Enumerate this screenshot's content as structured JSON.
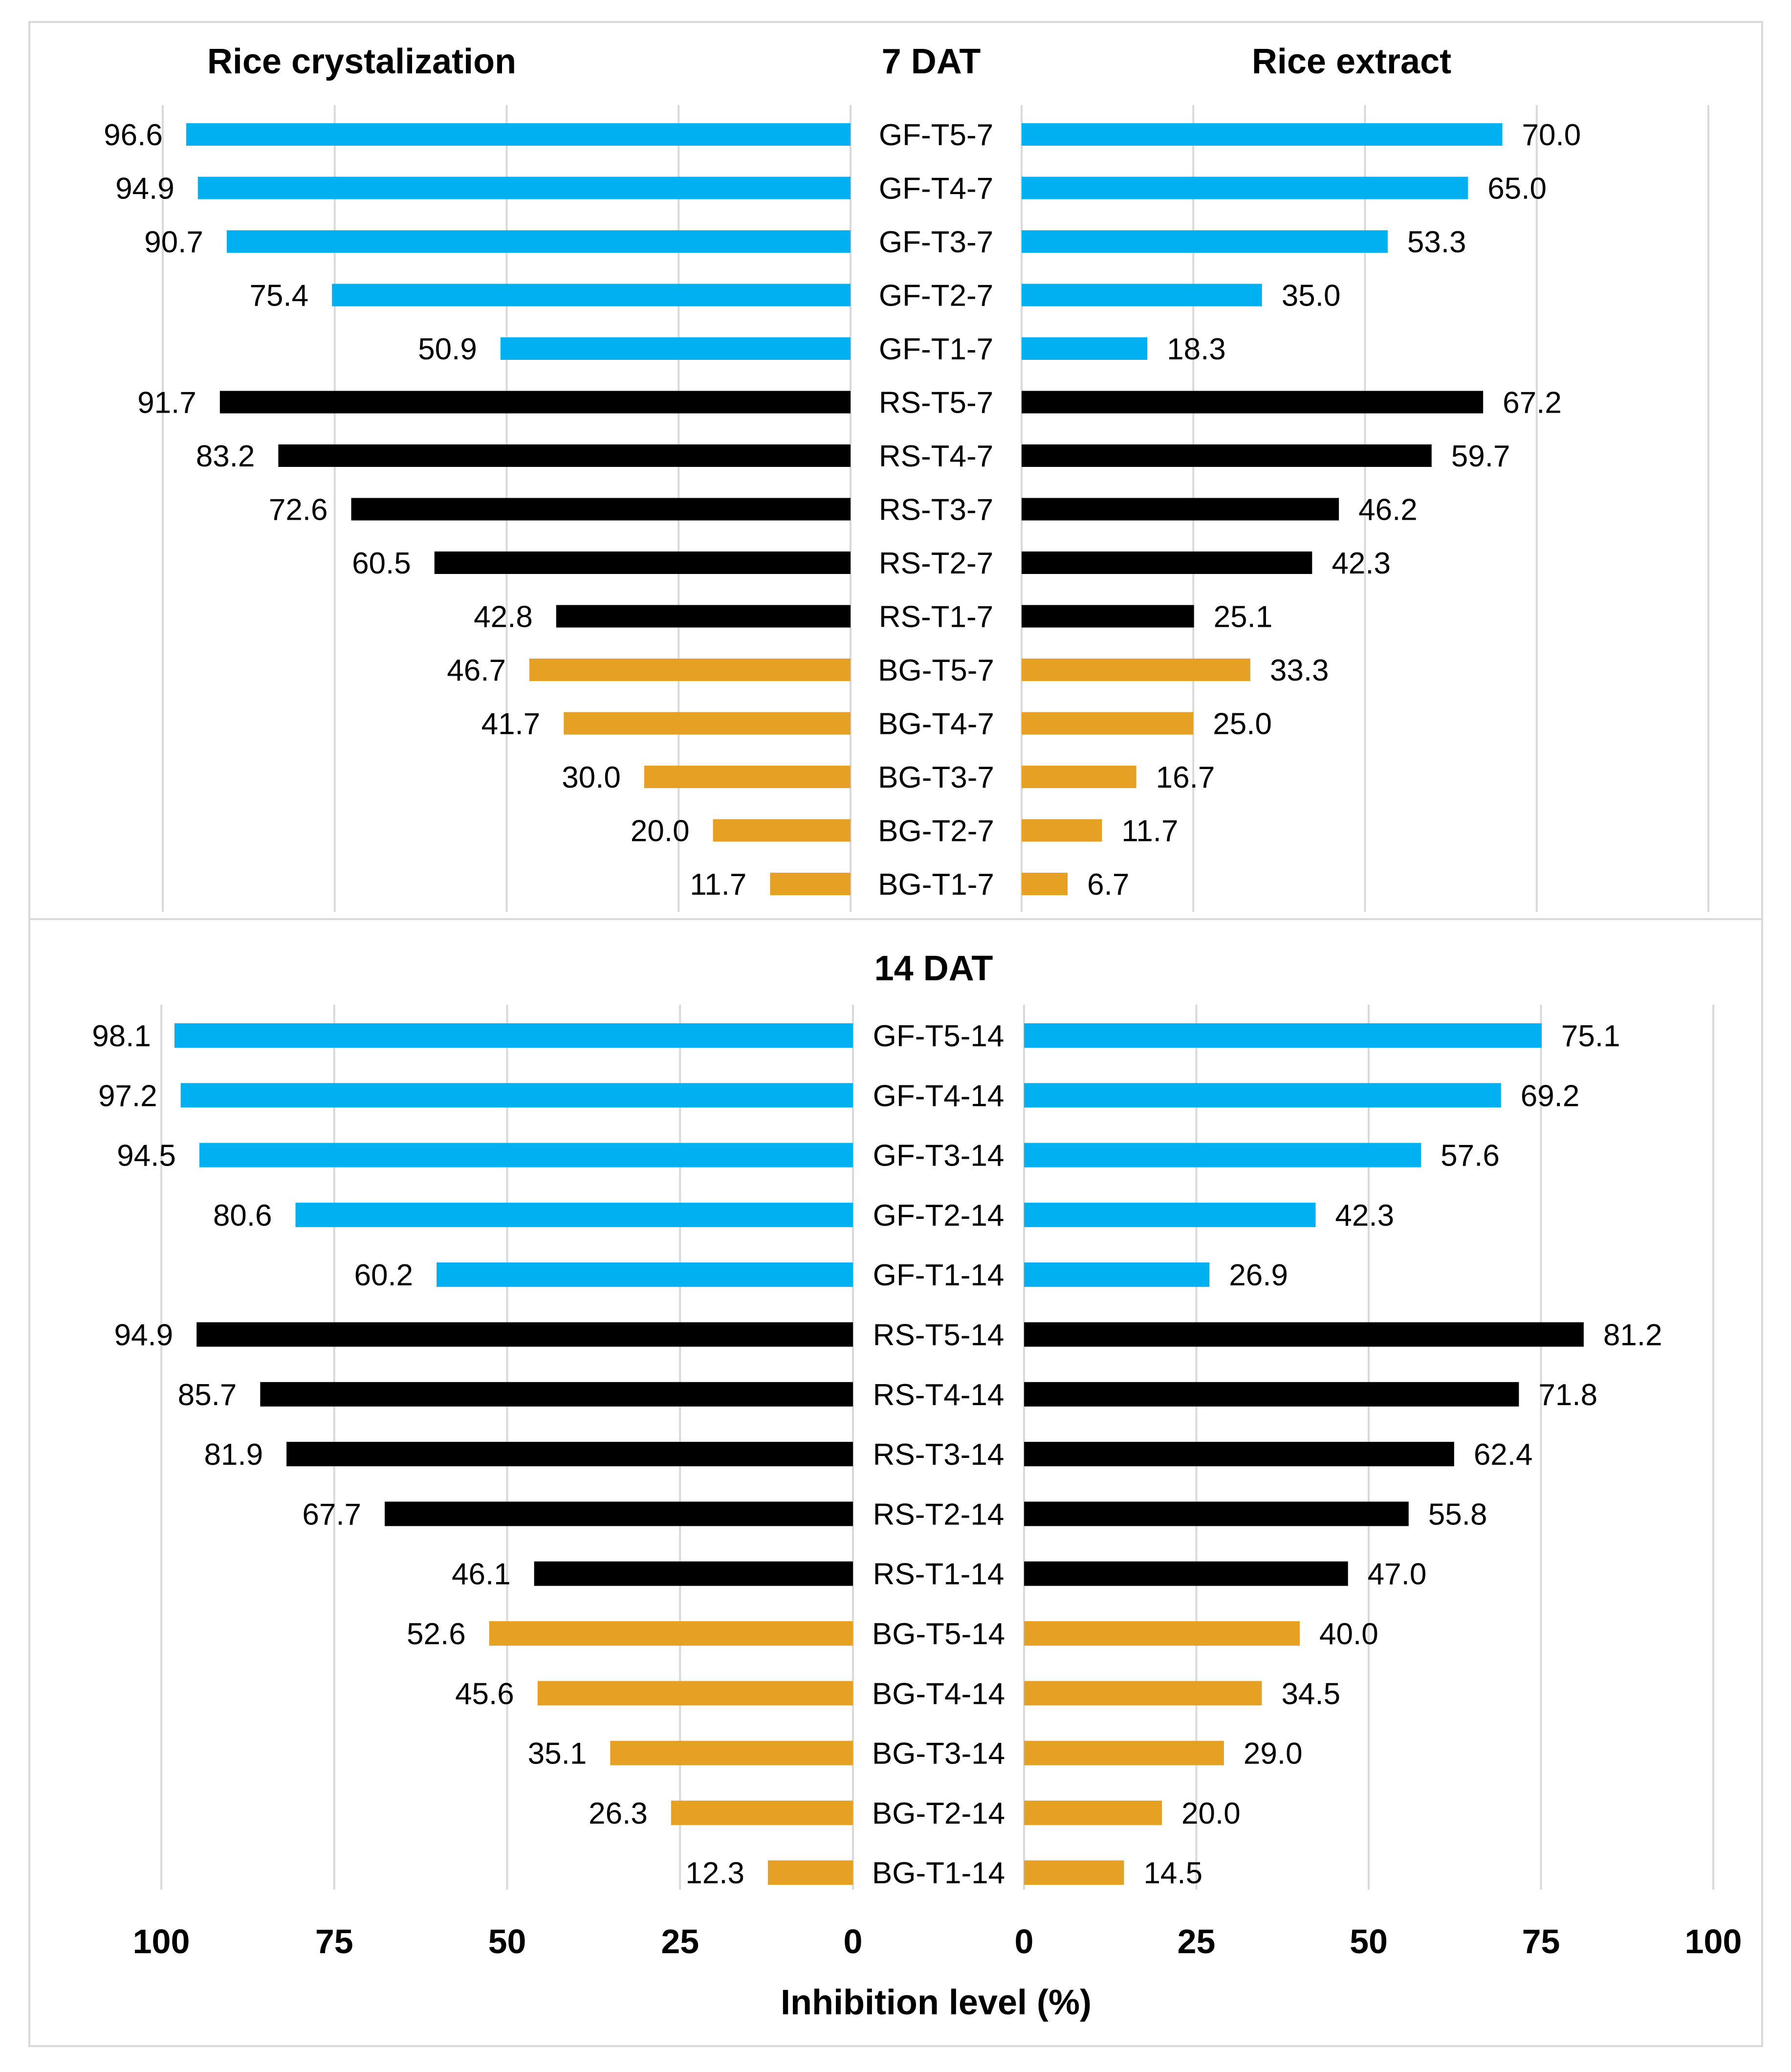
{
  "chart_data": {
    "type": "bar",
    "orientation": "horizontal-butterfly",
    "left_title": "Rice crystalization",
    "right_title": "Rice extract",
    "xlabel": "Inhibition level (%)",
    "xlim": [
      0,
      100
    ],
    "x_ticks_left": [
      "100",
      "75",
      "50",
      "25",
      "0"
    ],
    "x_ticks_right": [
      "0",
      "25",
      "50",
      "75",
      "100"
    ],
    "colors": {
      "GF": "#00b0f0",
      "RS": "#000000",
      "BG": "#e6a023"
    },
    "panels": [
      {
        "title": "7 DAT",
        "categories": [
          "GF-T5-7",
          "GF-T4-7",
          "GF-T3-7",
          "GF-T2-7",
          "GF-T1-7",
          "RS-T5-7",
          "RS-T4-7",
          "RS-T3-7",
          "RS-T2-7",
          "RS-T1-7",
          "BG-T5-7",
          "BG-T4-7",
          "BG-T3-7",
          "BG-T2-7",
          "BG-T1-7"
        ],
        "groups": [
          "GF",
          "GF",
          "GF",
          "GF",
          "GF",
          "RS",
          "RS",
          "RS",
          "RS",
          "RS",
          "BG",
          "BG",
          "BG",
          "BG",
          "BG"
        ],
        "series": [
          {
            "name": "Rice crystalization",
            "values": [
              96.6,
              94.9,
              90.7,
              75.4,
              50.9,
              91.7,
              83.2,
              72.6,
              60.5,
              42.8,
              46.7,
              41.7,
              30.0,
              20.0,
              11.7
            ],
            "labels": [
              "96.6",
              "94.9",
              "90.7",
              "75.4",
              "50.9",
              "91.7",
              "83.2",
              "72.6",
              "60.5",
              "42.8",
              "46.7",
              "41.7",
              "30.0",
              "20.0",
              "11.7"
            ]
          },
          {
            "name": "Rice extract",
            "values": [
              70.0,
              65.0,
              53.3,
              35.0,
              18.3,
              67.2,
              59.7,
              46.2,
              42.3,
              25.1,
              33.3,
              25.0,
              16.7,
              11.7,
              6.7
            ],
            "labels": [
              "70.0",
              "65.0",
              "53.3",
              "35.0",
              "18.3",
              "67.2",
              "59.7",
              "46.2",
              "42.3",
              "25.1",
              "33.3",
              "25.0",
              "16.7",
              "11.7",
              "6.7"
            ]
          }
        ]
      },
      {
        "title": "14 DAT",
        "categories": [
          "GF-T5-14",
          "GF-T4-14",
          "GF-T3-14",
          "GF-T2-14",
          "GF-T1-14",
          "RS-T5-14",
          "RS-T4-14",
          "RS-T3-14",
          "RS-T2-14",
          "RS-T1-14",
          "BG-T5-14",
          "BG-T4-14",
          "BG-T3-14",
          "BG-T2-14",
          "BG-T1-14"
        ],
        "groups": [
          "GF",
          "GF",
          "GF",
          "GF",
          "GF",
          "RS",
          "RS",
          "RS",
          "RS",
          "RS",
          "BG",
          "BG",
          "BG",
          "BG",
          "BG"
        ],
        "series": [
          {
            "name": "Rice crystalization",
            "values": [
              98.1,
              97.2,
              94.5,
              80.6,
              60.2,
              94.9,
              85.7,
              81.9,
              67.7,
              46.1,
              52.6,
              45.6,
              35.1,
              26.3,
              12.3
            ],
            "labels": [
              "98.1",
              "97.2",
              "94.5",
              "80.6",
              "60.2",
              "94.9",
              "85.7",
              "81.9",
              "67.7",
              "46.1",
              "52.6",
              "45.6",
              "35.1",
              "26.3",
              "12.3"
            ]
          },
          {
            "name": "Rice extract",
            "values": [
              75.1,
              69.2,
              57.6,
              42.3,
              26.9,
              81.2,
              71.8,
              62.4,
              55.8,
              47.0,
              40.0,
              34.5,
              29.0,
              20.0,
              14.5
            ],
            "labels": [
              "75.1",
              "69.2",
              "57.6",
              "42.3",
              "26.9",
              "81.2",
              "71.8",
              "62.4",
              "55.8",
              "47.0",
              "40.0",
              "34.5",
              "29.0",
              "20.0",
              "14.5"
            ]
          }
        ]
      }
    ]
  }
}
